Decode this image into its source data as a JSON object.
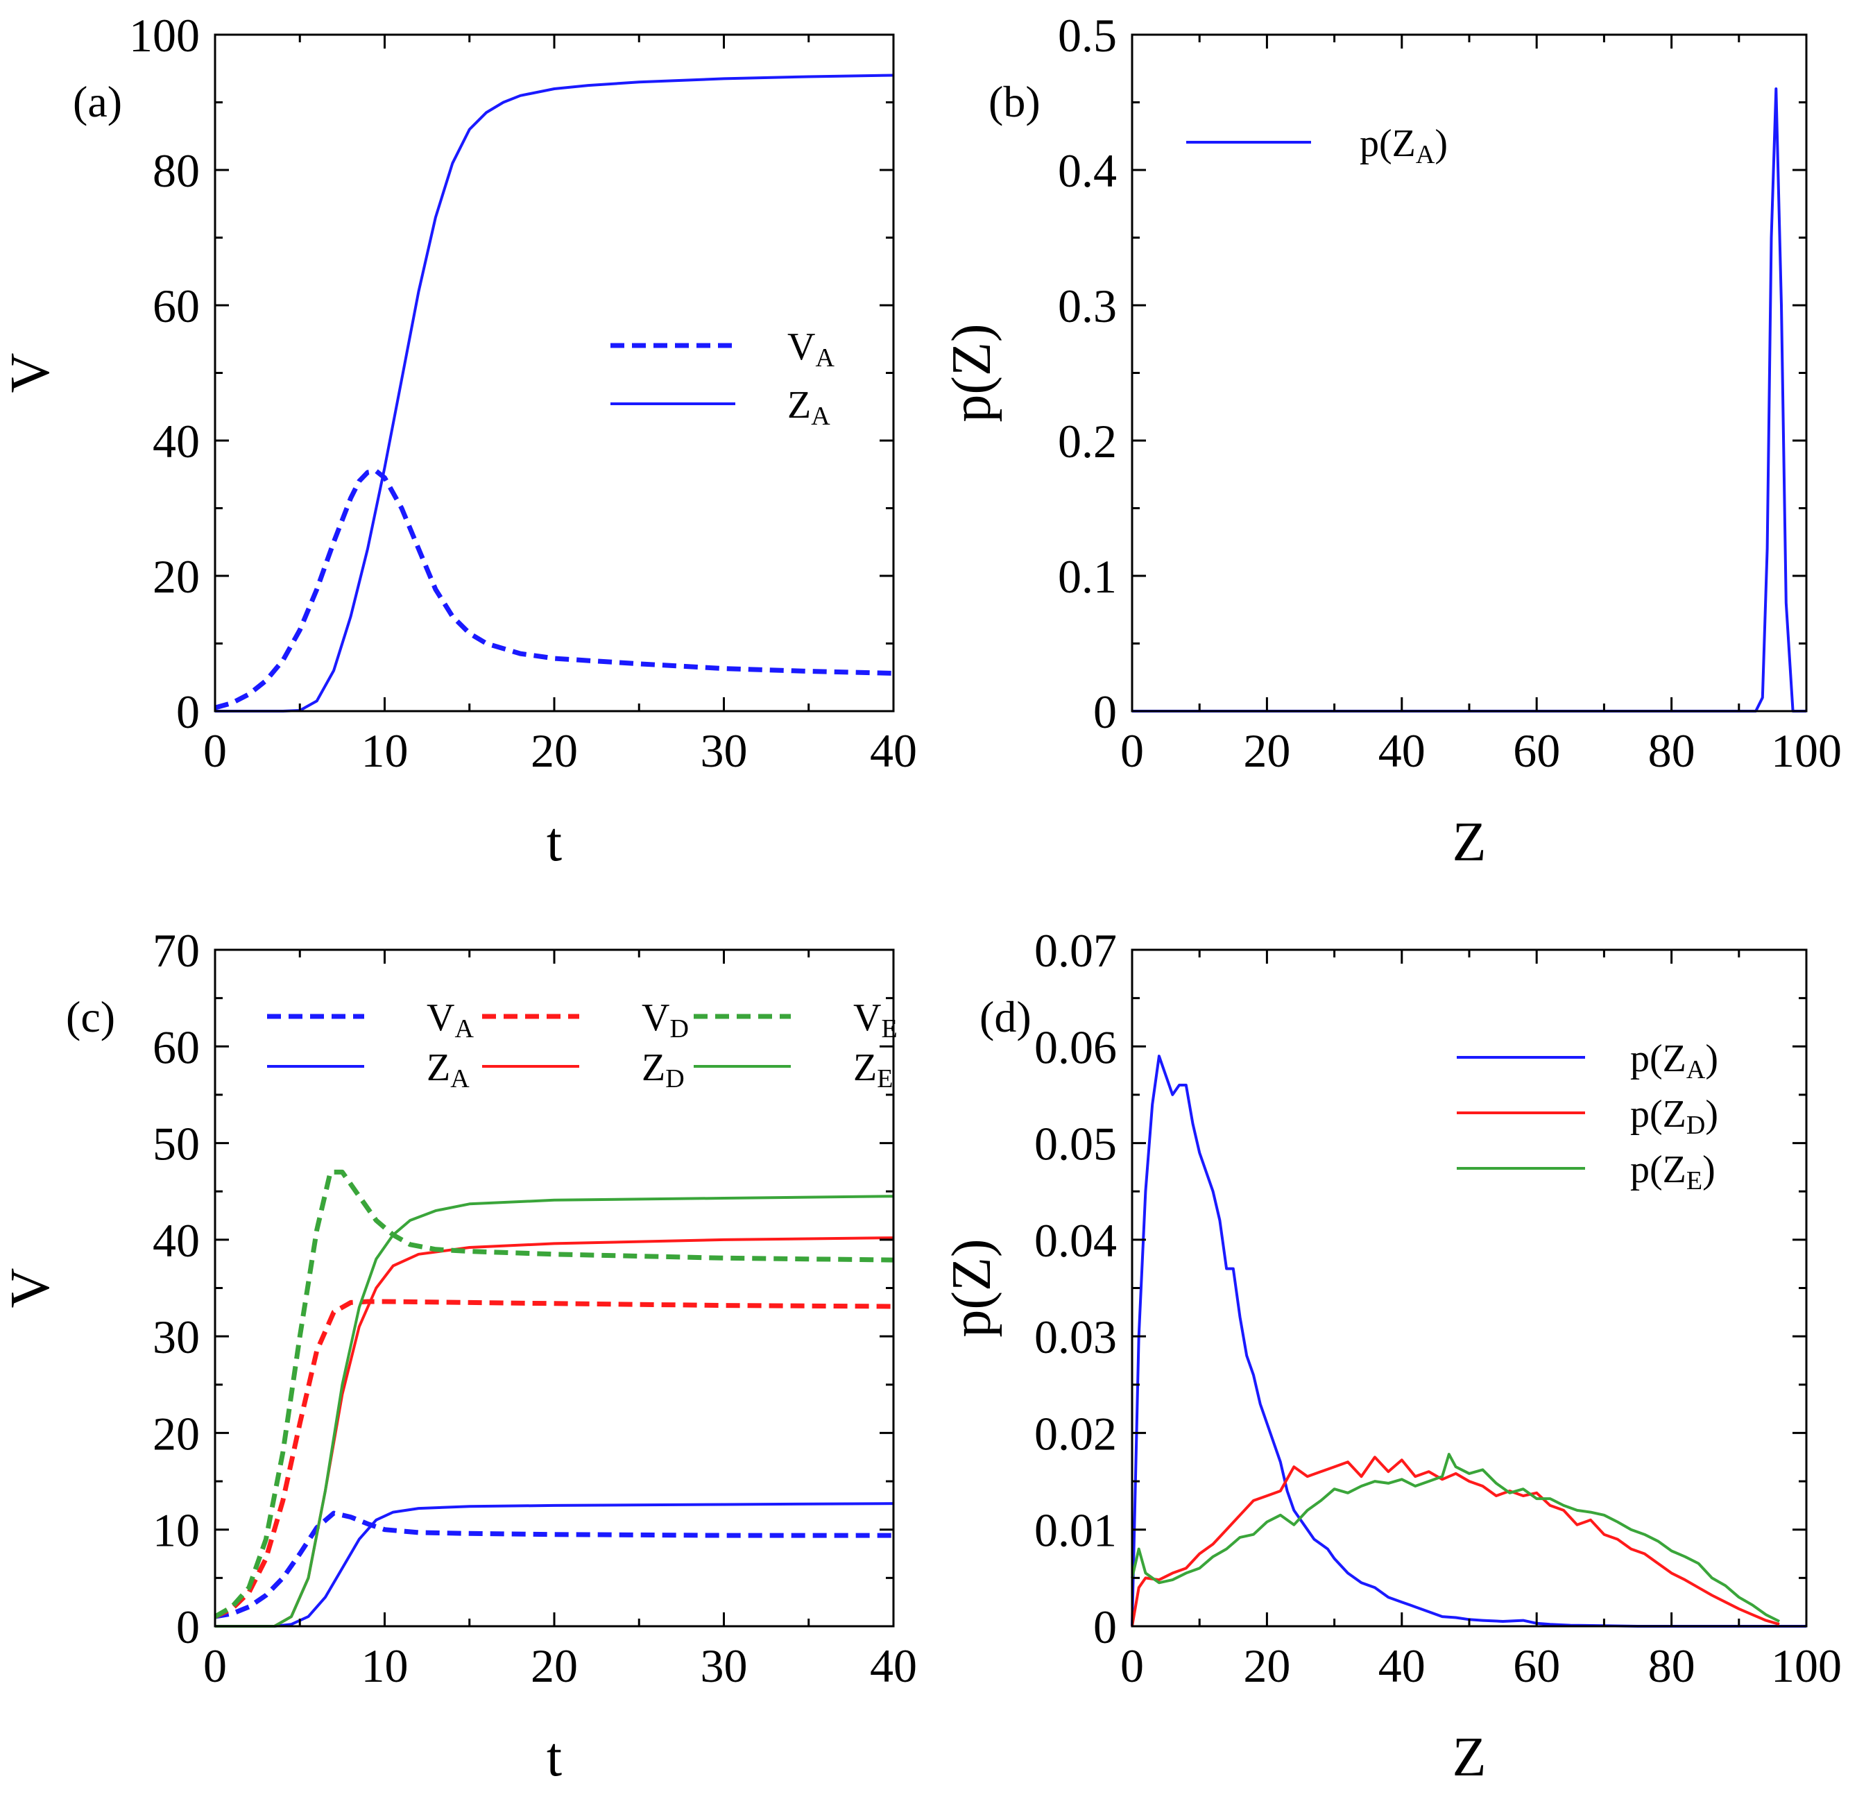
{
  "chart_data": [
    {
      "panel": "(a)",
      "type": "line",
      "xlabel": "t",
      "ylabel": "V",
      "xlim": [
        0,
        40
      ],
      "ylim": [
        0,
        100
      ],
      "xticks": [
        "0",
        "10",
        "20",
        "30",
        "40"
      ],
      "yticks": [
        "0",
        "20",
        "40",
        "60",
        "80",
        "100"
      ],
      "legend_position": "center-right",
      "series": [
        {
          "legend": "V",
          "legend_sub": "A",
          "color": "#1a1aff",
          "dashed": true,
          "x": [
            0,
            1,
            2,
            3,
            4,
            5,
            6,
            7,
            8,
            8.5,
            9,
            9.5,
            10,
            11,
            12,
            13,
            14,
            15,
            16,
            18,
            20,
            25,
            30,
            35,
            40
          ],
          "y": [
            0.5,
            1.2,
            2.5,
            4.5,
            7.5,
            12,
            18,
            25,
            31.5,
            34,
            35.3,
            35.5,
            34.5,
            30,
            24,
            18,
            14,
            11.5,
            10,
            8.5,
            7.8,
            7,
            6.3,
            5.9,
            5.6
          ]
        },
        {
          "legend": "Z",
          "legend_sub": "A",
          "color": "#1a1aff",
          "dashed": false,
          "x": [
            0,
            4,
            5,
            6,
            7,
            8,
            9,
            10,
            11,
            12,
            13,
            14,
            15,
            16,
            17,
            18,
            20,
            22,
            25,
            30,
            35,
            40
          ],
          "y": [
            0,
            0,
            0.1,
            1.5,
            6,
            14,
            24,
            36,
            49,
            62,
            73,
            81,
            86,
            88.5,
            90,
            91,
            92,
            92.5,
            93,
            93.5,
            93.8,
            94
          ]
        }
      ]
    },
    {
      "panel": "(b)",
      "type": "line",
      "xlabel": "Z",
      "ylabel": "p(Z)",
      "xlim": [
        0,
        100
      ],
      "ylim": [
        0,
        0.5
      ],
      "xticks": [
        "0",
        "20",
        "40",
        "60",
        "80",
        "100"
      ],
      "yticks": [
        "0",
        "0.1",
        "0.2",
        "0.3",
        "0.4",
        "0.5"
      ],
      "legend_position": "top-left",
      "series": [
        {
          "legend": "p(Z",
          "legend_sub": "A",
          "legend_suffix": ")",
          "color": "#1a1aff",
          "dashed": false,
          "x": [
            0,
            92.5,
            93.5,
            94.2,
            94.8,
            95.5,
            96.3,
            97,
            98,
            100
          ],
          "y": [
            0,
            0,
            0.01,
            0.12,
            0.35,
            0.46,
            0.3,
            0.08,
            0,
            0
          ]
        }
      ]
    },
    {
      "panel": "(c)",
      "type": "line",
      "xlabel": "t",
      "ylabel": "V",
      "xlim": [
        0,
        40
      ],
      "ylim": [
        0,
        70
      ],
      "xticks": [
        "0",
        "10",
        "20",
        "30",
        "40"
      ],
      "yticks": [
        "0",
        "10",
        "20",
        "30",
        "40",
        "50",
        "60",
        "70"
      ],
      "legend_position": "top",
      "series": [
        {
          "legend": "V",
          "legend_sub": "A",
          "color": "#1a1aff",
          "dashed": true,
          "x": [
            0,
            1,
            2,
            3,
            4,
            5,
            6,
            7,
            8,
            9,
            10,
            12,
            15,
            20,
            30,
            40
          ],
          "y": [
            1,
            1.3,
            2,
            3.2,
            5,
            7.5,
            10.2,
            11.7,
            11.3,
            10.6,
            10,
            9.7,
            9.6,
            9.5,
            9.4,
            9.4
          ]
        },
        {
          "legend": "Z",
          "legend_sub": "A",
          "color": "#1a1aff",
          "dashed": false,
          "x": [
            0,
            3.5,
            4.5,
            5.5,
            6.5,
            7.5,
            8.5,
            9.5,
            10.5,
            12,
            15,
            20,
            30,
            40
          ],
          "y": [
            0,
            0,
            0.2,
            1,
            3,
            6,
            9,
            11,
            11.8,
            12.2,
            12.4,
            12.5,
            12.6,
            12.7
          ]
        },
        {
          "legend": "V",
          "legend_sub": "D",
          "color": "#ff1a1a",
          "dashed": true,
          "x": [
            0,
            1,
            2,
            3,
            4,
            5,
            6,
            7,
            8,
            9,
            10,
            15,
            20,
            30,
            40
          ],
          "y": [
            1,
            1.8,
            3.5,
            7,
            13,
            21,
            28.5,
            32.5,
            33.5,
            33.6,
            33.6,
            33.5,
            33.4,
            33.2,
            33.1
          ]
        },
        {
          "legend": "Z",
          "legend_sub": "D",
          "color": "#ff1a1a",
          "dashed": false,
          "x": [
            0,
            3.5,
            4.5,
            5.5,
            6.5,
            7.5,
            8.5,
            9.5,
            10.5,
            12,
            15,
            20,
            30,
            40
          ],
          "y": [
            0,
            0,
            1,
            5,
            14,
            24,
            31,
            35,
            37.3,
            38.5,
            39.2,
            39.6,
            40,
            40.2
          ]
        },
        {
          "legend": "V",
          "legend_sub": "E",
          "color": "#3aa53a",
          "dashed": true,
          "x": [
            0,
            1,
            2,
            3,
            4,
            5,
            6,
            6.8,
            7.5,
            8.5,
            9.5,
            10.5,
            11.5,
            13,
            15,
            20,
            30,
            40
          ],
          "y": [
            1,
            2,
            4,
            9,
            18,
            30,
            41,
            47,
            47,
            44.5,
            42,
            40.5,
            39.5,
            39,
            38.8,
            38.5,
            38.1,
            37.9
          ]
        },
        {
          "legend": "Z",
          "legend_sub": "E",
          "color": "#3aa53a",
          "dashed": false,
          "x": [
            0,
            3.5,
            4.5,
            5.5,
            6.5,
            7.5,
            8.5,
            9.5,
            10.5,
            11.5,
            13,
            15,
            20,
            30,
            40
          ],
          "y": [
            0,
            0,
            1,
            5,
            14,
            25,
            33,
            38,
            40.5,
            42,
            43,
            43.7,
            44.1,
            44.3,
            44.5
          ]
        }
      ]
    },
    {
      "panel": "(d)",
      "type": "line",
      "xlabel": "Z",
      "ylabel": "p(Z)",
      "xlim": [
        0,
        100
      ],
      "ylim": [
        0,
        0.07
      ],
      "xticks": [
        "0",
        "20",
        "40",
        "60",
        "80",
        "100"
      ],
      "yticks": [
        "0",
        "0.01",
        "0.02",
        "0.03",
        "0.04",
        "0.05",
        "0.06",
        "0.07"
      ],
      "legend_position": "top-right",
      "series": [
        {
          "legend": "p(Z",
          "legend_sub": "A",
          "legend_suffix": ")",
          "color": "#1a1aff",
          "dashed": false,
          "x": [
            0,
            1,
            2,
            3,
            4,
            5,
            6,
            7,
            8,
            9,
            10,
            11,
            12,
            13,
            14,
            15,
            16,
            17,
            18,
            19,
            20,
            21,
            22,
            23,
            24,
            25,
            26,
            27,
            28,
            29,
            30,
            32,
            34,
            36,
            38,
            40,
            42,
            44,
            46,
            48,
            50,
            52,
            55,
            58,
            60,
            62,
            65,
            70,
            75,
            80,
            85,
            90,
            95,
            100
          ],
          "y": [
            0,
            0.03,
            0.045,
            0.054,
            0.059,
            0.057,
            0.055,
            0.056,
            0.056,
            0.052,
            0.049,
            0.047,
            0.045,
            0.042,
            0.037,
            0.037,
            0.032,
            0.028,
            0.026,
            0.023,
            0.021,
            0.019,
            0.017,
            0.014,
            0.012,
            0.011,
            0.01,
            0.009,
            0.0085,
            0.008,
            0.007,
            0.0055,
            0.0045,
            0.004,
            0.003,
            0.0025,
            0.002,
            0.0015,
            0.001,
            0.0009,
            0.0007,
            0.0006,
            0.0005,
            0.0006,
            0.0003,
            0.0002,
            0.0001,
            5e-05,
            0,
            0,
            0,
            0,
            0,
            0
          ]
        },
        {
          "legend": "p(Z",
          "legend_sub": "D",
          "legend_suffix": ")",
          "color": "#ff1a1a",
          "dashed": false,
          "x": [
            0,
            1,
            2,
            4,
            6,
            8,
            10,
            12,
            14,
            16,
            18,
            20,
            22,
            24,
            26,
            28,
            30,
            32,
            34,
            36,
            38,
            40,
            42,
            44,
            46,
            48,
            50,
            52,
            54,
            56,
            58,
            60,
            62,
            64,
            66,
            68,
            70,
            72,
            74,
            76,
            78,
            80,
            82,
            84,
            86,
            88,
            90,
            92,
            94,
            96
          ],
          "y": [
            0,
            0.004,
            0.005,
            0.0048,
            0.0055,
            0.006,
            0.0075,
            0.0085,
            0.01,
            0.0115,
            0.013,
            0.0135,
            0.014,
            0.0165,
            0.0155,
            0.016,
            0.0165,
            0.017,
            0.0155,
            0.0175,
            0.016,
            0.0172,
            0.0155,
            0.016,
            0.0152,
            0.0158,
            0.015,
            0.0145,
            0.0135,
            0.014,
            0.0135,
            0.0138,
            0.0125,
            0.012,
            0.0105,
            0.011,
            0.0095,
            0.009,
            0.008,
            0.0075,
            0.0065,
            0.0055,
            0.0048,
            0.004,
            0.0032,
            0.0025,
            0.0018,
            0.0012,
            0.0006,
            0.0002
          ]
        },
        {
          "legend": "p(Z",
          "legend_sub": "E",
          "legend_suffix": ")",
          "color": "#3aa53a",
          "dashed": false,
          "x": [
            0,
            1,
            2,
            4,
            6,
            8,
            10,
            12,
            14,
            16,
            18,
            20,
            22,
            24,
            26,
            28,
            30,
            32,
            34,
            36,
            38,
            40,
            42,
            44,
            46,
            47,
            48,
            50,
            52,
            54,
            56,
            58,
            60,
            62,
            64,
            66,
            68,
            70,
            72,
            74,
            76,
            78,
            80,
            82,
            84,
            86,
            88,
            90,
            92,
            94,
            96
          ],
          "y": [
            0.005,
            0.008,
            0.0055,
            0.0045,
            0.0048,
            0.0055,
            0.006,
            0.0072,
            0.008,
            0.0092,
            0.0095,
            0.0108,
            0.0115,
            0.0105,
            0.012,
            0.013,
            0.0142,
            0.0138,
            0.0145,
            0.015,
            0.0148,
            0.0152,
            0.0145,
            0.015,
            0.0155,
            0.0178,
            0.0165,
            0.0158,
            0.0162,
            0.0148,
            0.0138,
            0.0142,
            0.0132,
            0.0132,
            0.0125,
            0.012,
            0.0118,
            0.0115,
            0.0108,
            0.01,
            0.0095,
            0.0088,
            0.0078,
            0.0072,
            0.0065,
            0.005,
            0.0042,
            0.003,
            0.0022,
            0.0012,
            0.0005
          ]
        }
      ]
    }
  ]
}
